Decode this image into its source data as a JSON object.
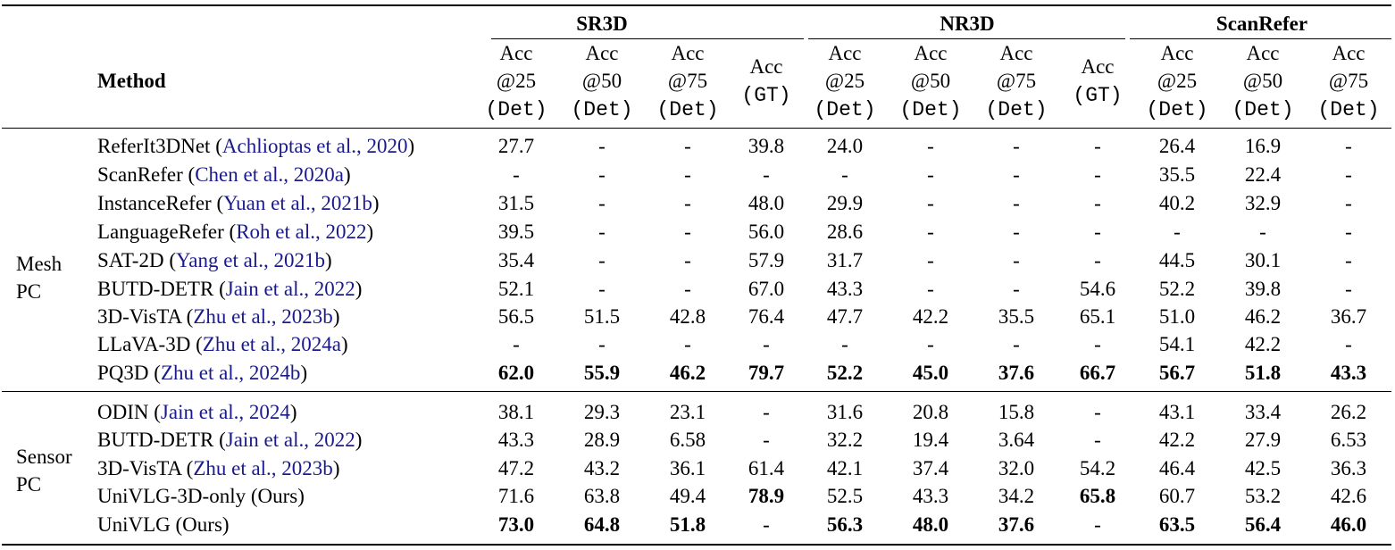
{
  "header": {
    "method_label": "Method",
    "groups": [
      "SR3D",
      "NR3D",
      "ScanRefer"
    ],
    "columns": [
      {
        "l1": "Acc",
        "l2": "@25",
        "l3": "(Det)"
      },
      {
        "l1": "Acc",
        "l2": "@50",
        "l3": "(Det)"
      },
      {
        "l1": "Acc",
        "l2": "@75",
        "l3": "(Det)"
      },
      {
        "l1": "Acc",
        "l2": "(GT)",
        "l3": ""
      },
      {
        "l1": "Acc",
        "l2": "@25",
        "l3": "(Det)"
      },
      {
        "l1": "Acc",
        "l2": "@50",
        "l3": "(Det)"
      },
      {
        "l1": "Acc",
        "l2": "@75",
        "l3": "(Det)"
      },
      {
        "l1": "Acc",
        "l2": "(GT)",
        "l3": ""
      },
      {
        "l1": "Acc",
        "l2": "@25",
        "l3": "(Det)"
      },
      {
        "l1": "Acc",
        "l2": "@50",
        "l3": "(Det)"
      },
      {
        "l1": "Acc",
        "l2": "@75",
        "l3": "(Det)"
      }
    ]
  },
  "sections": [
    {
      "label_lines": [
        "Mesh",
        "PC"
      ],
      "rows": [
        {
          "name": "ReferIt3DNet",
          "cite": "Achlioptas et al., 2020",
          "values": [
            "27.7",
            "-",
            "-",
            "39.8",
            "24.0",
            "-",
            "-",
            "-",
            "26.4",
            "16.9",
            "-"
          ],
          "bold": []
        },
        {
          "name": "ScanRefer",
          "cite": "Chen et al., 2020a",
          "values": [
            "-",
            "-",
            "-",
            "-",
            "-",
            "-",
            "-",
            "-",
            "35.5",
            "22.4",
            "-"
          ],
          "bold": []
        },
        {
          "name": "InstanceRefer",
          "cite": "Yuan et al., 2021b",
          "values": [
            "31.5",
            "-",
            "-",
            "48.0",
            "29.9",
            "-",
            "-",
            "-",
            "40.2",
            "32.9",
            "-"
          ],
          "bold": []
        },
        {
          "name": "LanguageRefer",
          "cite": "Roh et al., 2022",
          "values": [
            "39.5",
            "-",
            "-",
            "56.0",
            "28.6",
            "-",
            "-",
            "-",
            "-",
            "-",
            "-"
          ],
          "bold": []
        },
        {
          "name": "SAT-2D",
          "cite": "Yang et al., 2021b",
          "values": [
            "35.4",
            "-",
            "-",
            "57.9",
            "31.7",
            "-",
            "-",
            "-",
            "44.5",
            "30.1",
            "-"
          ],
          "bold": []
        },
        {
          "name": "BUTD-DETR",
          "cite": "Jain et al., 2022",
          "values": [
            "52.1",
            "-",
            "-",
            "67.0",
            "43.3",
            "-",
            "-",
            "54.6",
            "52.2",
            "39.8",
            "-"
          ],
          "bold": []
        },
        {
          "name": "3D-VisTA",
          "cite": "Zhu et al., 2023b",
          "values": [
            "56.5",
            "51.5",
            "42.8",
            "76.4",
            "47.7",
            "42.2",
            "35.5",
            "65.1",
            "51.0",
            "46.2",
            "36.7"
          ],
          "bold": []
        },
        {
          "name": "LLaVA-3D",
          "cite": "Zhu et al., 2024a",
          "values": [
            "-",
            "-",
            "-",
            "-",
            "-",
            "-",
            "-",
            "-",
            "54.1",
            "42.2",
            "-"
          ],
          "bold": []
        },
        {
          "name": "PQ3D",
          "cite": "Zhu et al., 2024b",
          "values": [
            "62.0",
            "55.9",
            "46.2",
            "79.7",
            "52.2",
            "45.0",
            "37.6",
            "66.7",
            "56.7",
            "51.8",
            "43.3"
          ],
          "bold": [
            0,
            1,
            2,
            3,
            4,
            5,
            6,
            7,
            8,
            9,
            10
          ]
        }
      ]
    },
    {
      "label_lines": [
        "Sensor",
        "PC"
      ],
      "rows": [
        {
          "name": "ODIN",
          "cite": "Jain et al., 2024",
          "values": [
            "38.1",
            "29.3",
            "23.1",
            "-",
            "31.6",
            "20.8",
            "15.8",
            "-",
            "43.1",
            "33.4",
            "26.2"
          ],
          "bold": []
        },
        {
          "name": "BUTD-DETR",
          "cite": "Jain et al., 2022",
          "values": [
            "43.3",
            "28.9",
            "6.58",
            "-",
            "32.2",
            "19.4",
            "3.64",
            "-",
            "42.2",
            "27.9",
            "6.53"
          ],
          "bold": []
        },
        {
          "name": "3D-VisTA",
          "cite": "Zhu et al., 2023b",
          "values": [
            "47.2",
            "43.2",
            "36.1",
            "61.4",
            "42.1",
            "37.4",
            "32.0",
            "54.2",
            "46.4",
            "42.5",
            "36.3"
          ],
          "bold": []
        },
        {
          "name": "UniVLG-3D-only (Ours)",
          "cite": "",
          "values": [
            "71.6",
            "63.8",
            "49.4",
            "78.9",
            "52.5",
            "43.3",
            "34.2",
            "65.8",
            "60.7",
            "53.2",
            "42.6"
          ],
          "bold": [
            3,
            7
          ]
        },
        {
          "name": "UniVLG (Ours)",
          "cite": "",
          "values": [
            "73.0",
            "64.8",
            "51.8",
            "-",
            "56.3",
            "48.0",
            "37.6",
            "-",
            "63.5",
            "56.4",
            "46.0"
          ],
          "bold": [
            0,
            1,
            2,
            4,
            5,
            6,
            8,
            9,
            10
          ]
        }
      ]
    }
  ]
}
